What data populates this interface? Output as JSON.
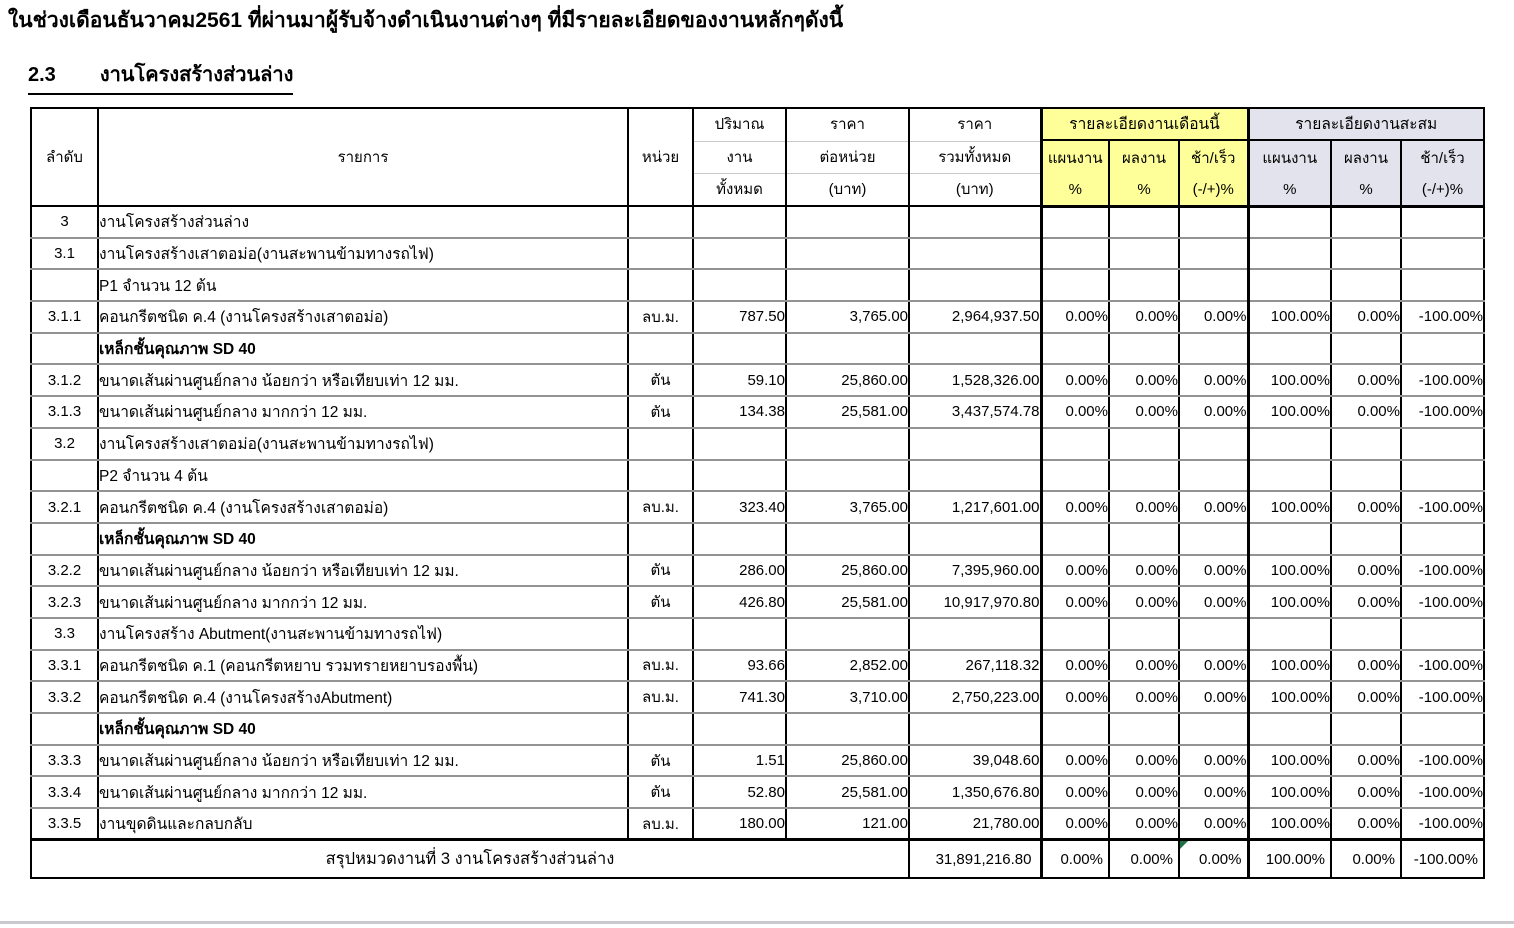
{
  "page": {
    "intro": "ในช่วงเดือนธันวาคม2561 ที่ผ่านมาผู้รับจ้างดำเนินงานต่างๆ ที่มีรายละเอียดของงานหลักๆดังนี้",
    "section_no": "2.3",
    "section_title": "งานโครงสร้างส่วนล่าง"
  },
  "table": {
    "colors": {
      "month_header_bg": "#ffff99",
      "cumulative_header_bg": "#e3e3ed",
      "error_indicator_green": "#1e7145"
    },
    "headers": {
      "no": "ลำดับ",
      "item": "รายการ",
      "unit": "หน่วย",
      "qty_lines": [
        "ปริมาณ",
        "งาน",
        "ทั้งหมด"
      ],
      "unit_price_lines": [
        "ราคา",
        "ต่อหน่วย",
        "(บาท)"
      ],
      "total_price_lines": [
        "ราคา",
        "รวมทั้งหมด",
        "(บาท)"
      ],
      "month_group": "รายละเอียดงานเดือนนี้",
      "cumulative_group": "รายละเอียดงานสะสม",
      "plan_lines": [
        "แผนงาน",
        "%"
      ],
      "actual_lines": [
        "ผลงาน",
        "%"
      ],
      "diff_lines": [
        "ช้า/เร็ว",
        "(-/+)%"
      ]
    },
    "rows": [
      {
        "no": "3",
        "item": "งานโครงสร้างส่วนล่าง",
        "bold": false,
        "unit": "",
        "qty": "",
        "price": "",
        "total": "",
        "m_plan": "",
        "m_actual": "",
        "m_diff": "",
        "c_plan": "",
        "c_actual": "",
        "c_diff": ""
      },
      {
        "no": "3.1",
        "item": "งานโครงสร้างเสาตอม่อ(งานสะพานข้ามทางรถไฟ)",
        "bold": false,
        "unit": "",
        "qty": "",
        "price": "",
        "total": "",
        "m_plan": "",
        "m_actual": "",
        "m_diff": "",
        "c_plan": "",
        "c_actual": "",
        "c_diff": ""
      },
      {
        "no": "",
        "item": "P1 จำนวน 12 ต้น",
        "bold": false,
        "unit": "",
        "qty": "",
        "price": "",
        "total": "",
        "m_plan": "",
        "m_actual": "",
        "m_diff": "",
        "c_plan": "",
        "c_actual": "",
        "c_diff": ""
      },
      {
        "no": "3.1.1",
        "item": "คอนกรีตชนิด ค.4 (งานโครงสร้างเสาตอม่อ)",
        "bold": false,
        "unit": "ลบ.ม.",
        "qty": "787.50",
        "price": "3,765.00",
        "total": "2,964,937.50",
        "m_plan": "0.00%",
        "m_actual": "0.00%",
        "m_diff": "0.00%",
        "c_plan": "100.00%",
        "c_actual": "0.00%",
        "c_diff": "-100.00%"
      },
      {
        "no": "",
        "item": "เหล็กชั้นคุณภาพ SD 40",
        "bold": true,
        "unit": "",
        "qty": "",
        "price": "",
        "total": "",
        "m_plan": "",
        "m_actual": "",
        "m_diff": "",
        "c_plan": "",
        "c_actual": "",
        "c_diff": ""
      },
      {
        "no": "3.1.2",
        "item": "ขนาดเส้นผ่านศูนย์กลาง น้อยกว่า หรือเทียบเท่า 12 มม.",
        "bold": false,
        "unit": "ตัน",
        "qty": "59.10",
        "price": "25,860.00",
        "total": "1,528,326.00",
        "m_plan": "0.00%",
        "m_actual": "0.00%",
        "m_diff": "0.00%",
        "c_plan": "100.00%",
        "c_actual": "0.00%",
        "c_diff": "-100.00%"
      },
      {
        "no": "3.1.3",
        "item": "ขนาดเส้นผ่านศูนย์กลาง มากกว่า 12 มม.",
        "bold": false,
        "unit": "ตัน",
        "qty": "134.38",
        "price": "25,581.00",
        "total": "3,437,574.78",
        "m_plan": "0.00%",
        "m_actual": "0.00%",
        "m_diff": "0.00%",
        "c_plan": "100.00%",
        "c_actual": "0.00%",
        "c_diff": "-100.00%"
      },
      {
        "no": "3.2",
        "item": "งานโครงสร้างเสาตอม่อ(งานสะพานข้ามทางรถไฟ)",
        "bold": false,
        "unit": "",
        "qty": "",
        "price": "",
        "total": "",
        "m_plan": "",
        "m_actual": "",
        "m_diff": "",
        "c_plan": "",
        "c_actual": "",
        "c_diff": ""
      },
      {
        "no": "",
        "item": "P2 จำนวน 4 ต้น",
        "bold": false,
        "unit": "",
        "qty": "",
        "price": "",
        "total": "",
        "m_plan": "",
        "m_actual": "",
        "m_diff": "",
        "c_plan": "",
        "c_actual": "",
        "c_diff": ""
      },
      {
        "no": "3.2.1",
        "item": "คอนกรีตชนิด ค.4 (งานโครงสร้างเสาตอม่อ)",
        "bold": false,
        "unit": "ลบ.ม.",
        "qty": "323.40",
        "price": "3,765.00",
        "total": "1,217,601.00",
        "m_plan": "0.00%",
        "m_actual": "0.00%",
        "m_diff": "0.00%",
        "c_plan": "100.00%",
        "c_actual": "0.00%",
        "c_diff": "-100.00%"
      },
      {
        "no": "",
        "item": "เหล็กชั้นคุณภาพ SD 40",
        "bold": true,
        "unit": "",
        "qty": "",
        "price": "",
        "total": "",
        "m_plan": "",
        "m_actual": "",
        "m_diff": "",
        "c_plan": "",
        "c_actual": "",
        "c_diff": ""
      },
      {
        "no": "3.2.2",
        "item": "ขนาดเส้นผ่านศูนย์กลาง น้อยกว่า หรือเทียบเท่า 12 มม.",
        "bold": false,
        "unit": "ตัน",
        "qty": "286.00",
        "price": "25,860.00",
        "total": "7,395,960.00",
        "m_plan": "0.00%",
        "m_actual": "0.00%",
        "m_diff": "0.00%",
        "c_plan": "100.00%",
        "c_actual": "0.00%",
        "c_diff": "-100.00%"
      },
      {
        "no": "3.2.3",
        "item": "ขนาดเส้นผ่านศูนย์กลาง มากกว่า 12 มม.",
        "bold": false,
        "unit": "ตัน",
        "qty": "426.80",
        "price": "25,581.00",
        "total": "10,917,970.80",
        "m_plan": "0.00%",
        "m_actual": "0.00%",
        "m_diff": "0.00%",
        "c_plan": "100.00%",
        "c_actual": "0.00%",
        "c_diff": "-100.00%"
      },
      {
        "no": "3.3",
        "item": "งานโครงสร้าง Abutment(งานสะพานข้ามทางรถไฟ)",
        "bold": false,
        "unit": "",
        "qty": "",
        "price": "",
        "total": "",
        "m_plan": "",
        "m_actual": "",
        "m_diff": "",
        "c_plan": "",
        "c_actual": "",
        "c_diff": ""
      },
      {
        "no": "3.3.1",
        "item": "คอนกรีตชนิด ค.1 (คอนกรีตหยาบ รวมทรายหยาบรองพื้น)",
        "bold": false,
        "unit": "ลบ.ม.",
        "qty": "93.66",
        "price": "2,852.00",
        "total": "267,118.32",
        "m_plan": "0.00%",
        "m_actual": "0.00%",
        "m_diff": "0.00%",
        "c_plan": "100.00%",
        "c_actual": "0.00%",
        "c_diff": "-100.00%"
      },
      {
        "no": "3.3.2",
        "item": "คอนกรีตชนิด ค.4 (งานโครงสร้างAbutment)",
        "bold": false,
        "unit": "ลบ.ม.",
        "qty": "741.30",
        "price": "3,710.00",
        "total": "2,750,223.00",
        "m_plan": "0.00%",
        "m_actual": "0.00%",
        "m_diff": "0.00%",
        "c_plan": "100.00%",
        "c_actual": "0.00%",
        "c_diff": "-100.00%"
      },
      {
        "no": "",
        "item": "เหล็กชั้นคุณภาพ SD 40",
        "bold": true,
        "unit": "",
        "qty": "",
        "price": "",
        "total": "",
        "m_plan": "",
        "m_actual": "",
        "m_diff": "",
        "c_plan": "",
        "c_actual": "",
        "c_diff": ""
      },
      {
        "no": "3.3.3",
        "item": "ขนาดเส้นผ่านศูนย์กลาง น้อยกว่า หรือเทียบเท่า 12 มม.",
        "bold": false,
        "unit": "ตัน",
        "qty": "1.51",
        "price": "25,860.00",
        "total": "39,048.60",
        "m_plan": "0.00%",
        "m_actual": "0.00%",
        "m_diff": "0.00%",
        "c_plan": "100.00%",
        "c_actual": "0.00%",
        "c_diff": "-100.00%"
      },
      {
        "no": "3.3.4",
        "item": "ขนาดเส้นผ่านศูนย์กลาง มากกว่า 12 มม.",
        "bold": false,
        "unit": "ตัน",
        "qty": "52.80",
        "price": "25,581.00",
        "total": "1,350,676.80",
        "m_plan": "0.00%",
        "m_actual": "0.00%",
        "m_diff": "0.00%",
        "c_plan": "100.00%",
        "c_actual": "0.00%",
        "c_diff": "-100.00%"
      },
      {
        "no": "3.3.5",
        "item": "งานขุดดินและกลบกลับ",
        "bold": false,
        "unit": "ลบ.ม.",
        "qty": "180.00",
        "price": "121.00",
        "total": "21,780.00",
        "m_plan": "0.00%",
        "m_actual": "0.00%",
        "m_diff": "0.00%",
        "c_plan": "100.00%",
        "c_actual": "0.00%",
        "c_diff": "-100.00%"
      }
    ],
    "summary": {
      "label": "สรุปหมวดงานที่ 3 งานโครงสร้างส่วนล่าง",
      "total": "31,891,216.80",
      "m_plan": "0.00%",
      "m_actual": "0.00%",
      "m_diff": "0.00%",
      "c_plan": "100.00%",
      "c_actual": "0.00%",
      "c_diff": "-100.00%",
      "error_indicator_on": "m_diff"
    }
  }
}
